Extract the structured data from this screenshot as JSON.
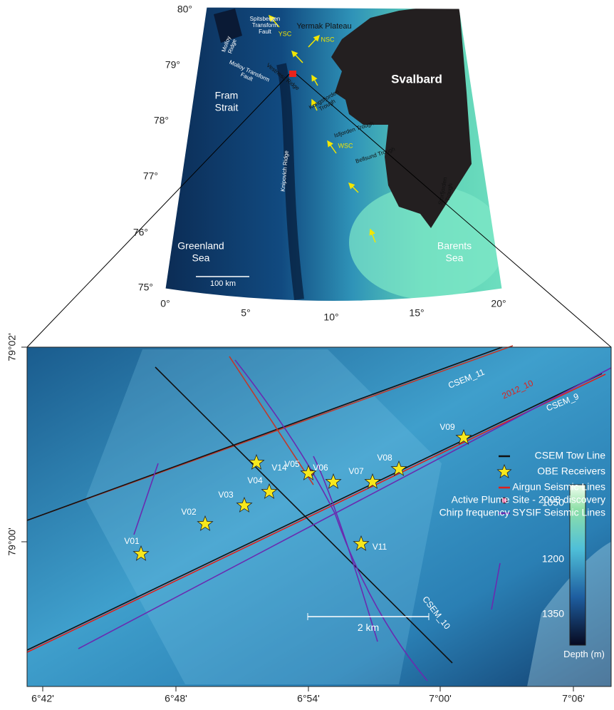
{
  "regional_map": {
    "lat_labels": [
      "80°",
      "79°",
      "78°",
      "77°",
      "76°",
      "75°"
    ],
    "lon_labels": [
      "0°",
      "5°",
      "10°",
      "15°",
      "20°"
    ],
    "regions": [
      [
        "Yermak  Plateau"
      ],
      [
        "Svalbard"
      ],
      [
        "Fram",
        "Strait"
      ],
      [
        "Greenland",
        "Sea"
      ],
      [
        "Barents",
        "Sea"
      ]
    ],
    "features": [
      [
        "Spitsbergen",
        "Transform",
        "Fault"
      ],
      [
        "Molloy",
        "Ridge"
      ],
      [
        "Molloy Transform",
        "Fault"
      ],
      [
        "Vestnesa Ridge"
      ],
      [
        "Kongsfjorden",
        "Trough"
      ],
      [
        "Isfjorden Trough"
      ],
      [
        "Bellsund Trough"
      ],
      [
        "Knipovich Ridge"
      ],
      [
        "Storfjorden",
        "Trough"
      ]
    ],
    "currents": [
      "YSC",
      "NSC",
      "WSC"
    ],
    "scale_bar": "100 km"
  },
  "detail_map": {
    "lat_labels": [
      "79°02'",
      "79°00'"
    ],
    "lon_labels": [
      "6°42'",
      "6°48'",
      "6°54'",
      "7°00'",
      "7°06'"
    ],
    "line_labels": [
      "CSEM_11",
      "CSEM_9",
      "CSEM_10",
      "2012_10"
    ],
    "receivers": [
      "V01",
      "V02",
      "V03",
      "V04",
      "V05",
      "V06",
      "V07",
      "V08",
      "V09",
      "V11",
      "V14"
    ],
    "legend": [
      "CSEM Tow Line",
      "OBE Receivers",
      "Airgun Seismic Lines",
      "Active Plume Site - 2008 discovery",
      "Chirp frequency SYSIF Seismic Lines"
    ],
    "colorbar": {
      "ticks": [
        "1050",
        "1200",
        "1350"
      ],
      "title": "Depth (m)"
    },
    "scale_bar": "2 km"
  }
}
